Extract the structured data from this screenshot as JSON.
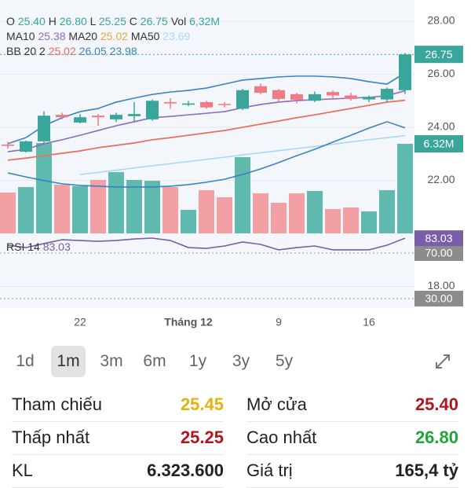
{
  "chart_data": {
    "type": "candlestick",
    "up_color": "#3aa59a",
    "down_color": "#f07b84",
    "volume_up_color": "#5fb9ae",
    "volume_down_color": "#f3a0a4",
    "categories": [
      null,
      null,
      null,
      null,
      "22",
      null,
      null,
      null,
      null,
      null,
      "Tháng 12",
      null,
      null,
      null,
      null,
      "9",
      null,
      null,
      null,
      null,
      "16",
      null,
      null
    ],
    "open": [
      23.35,
      23.08,
      23.47,
      24.47,
      24.18,
      24.44,
      24.3,
      24.42,
      24.3,
      24.95,
      24.85,
      24.95,
      24.88,
      24.7,
      25.55,
      25.4,
      25.25,
      25.0,
      25.33,
      25.2,
      25.05,
      25.05,
      25.4
    ],
    "high": [
      23.45,
      23.5,
      24.6,
      24.55,
      24.5,
      24.5,
      24.55,
      24.95,
      25.05,
      25.1,
      25.0,
      25.0,
      24.95,
      25.45,
      25.65,
      25.45,
      25.3,
      25.35,
      25.38,
      25.3,
      25.2,
      25.5,
      26.8
    ],
    "low": [
      23.2,
      23.05,
      23.4,
      24.3,
      24.15,
      24.06,
      24.2,
      24.2,
      24.25,
      24.7,
      24.8,
      24.7,
      24.75,
      24.65,
      25.25,
      24.95,
      24.9,
      24.95,
      25.1,
      25.0,
      24.95,
      24.95,
      25.25
    ],
    "close": [
      23.3,
      23.47,
      24.44,
      24.38,
      24.38,
      24.38,
      24.47,
      24.5,
      25.0,
      24.9,
      24.9,
      24.75,
      24.85,
      25.4,
      25.3,
      25.07,
      25.04,
      25.25,
      25.2,
      25.07,
      25.15,
      25.45,
      26.75
    ],
    "ylim": [
      17.4,
      28.5
    ],
    "yticks": [
      {
        "value": 18,
        "label": "18.00"
      },
      {
        "value": 22,
        "label": "22.00"
      },
      {
        "value": 24,
        "label": "24.00"
      },
      {
        "value": 26,
        "label": "26.00"
      },
      {
        "value": 28,
        "label": "28.00"
      }
    ],
    "volume": {
      "values": [
        2.88,
        3.27,
        6.38,
        3.44,
        3.33,
        3.77,
        4.32,
        3.77,
        3.71,
        3.27,
        1.66,
        3.05,
        2.55,
        5.38,
        2.83,
        2.16,
        2.83,
        2.99,
        1.72,
        1.83,
        1.55,
        3.05,
        6.32
      ],
      "value_labels": [
        null,
        null,
        null,
        null,
        null,
        null,
        null,
        null,
        null,
        null,
        null,
        null,
        null,
        null,
        null,
        null,
        null,
        null,
        null,
        null,
        null,
        null,
        "6.32M"
      ],
      "vlim": [
        0,
        10
      ]
    },
    "legend_ohlc": [
      {
        "key": "O",
        "value": "25.40"
      },
      {
        "key": "H",
        "value": "26.80"
      },
      {
        "key": "L",
        "value": "25.25"
      },
      {
        "key": "C",
        "value": "26.75"
      },
      {
        "key": "Vol",
        "value": "6,32M"
      }
    ],
    "lines": [
      {
        "name": "MA10",
        "color": "#8a6bbf",
        "legend_value": "25.38",
        "values": [
          23.08,
          23.17,
          23.38,
          23.53,
          23.7,
          23.88,
          24.06,
          24.21,
          24.36,
          24.41,
          24.47,
          24.53,
          24.59,
          24.74,
          24.86,
          24.95,
          25.01,
          25.04,
          25.07,
          25.1,
          25.13,
          25.19,
          25.38
        ]
      },
      {
        "name": "MA20",
        "color": "#f0a636",
        "legend_value": "25.02",
        "values": [
          22.76,
          22.84,
          22.93,
          23.02,
          23.11,
          23.23,
          23.32,
          23.41,
          23.53,
          23.61,
          23.7,
          23.79,
          23.88,
          24.0,
          24.12,
          24.24,
          24.36,
          24.47,
          24.59,
          24.71,
          24.83,
          24.95,
          25.02
        ]
      },
      {
        "name": "MA50",
        "color": "#a8d8f2",
        "legend_value": "23.69",
        "values": [
          null,
          null,
          null,
          null,
          22.22,
          22.3,
          22.38,
          22.47,
          22.55,
          22.63,
          22.71,
          22.79,
          22.87,
          22.96,
          23.04,
          23.12,
          23.2,
          23.28,
          23.36,
          23.45,
          23.53,
          23.61,
          23.69
        ]
      }
    ],
    "bb": {
      "name": "BB 20 2",
      "series": [
        {
          "color": "#ec6a5e",
          "legend_value": "25.02",
          "values": [
            22.76,
            22.84,
            22.93,
            23.02,
            23.11,
            23.23,
            23.32,
            23.41,
            23.53,
            23.61,
            23.7,
            23.79,
            23.88,
            24.0,
            24.12,
            24.24,
            24.36,
            24.47,
            24.59,
            24.71,
            24.83,
            24.95,
            25.02
          ]
        },
        {
          "color": "#3b82c4",
          "legend_value": "26.05",
          "values": [
            23.38,
            23.61,
            24.06,
            24.36,
            24.59,
            24.71,
            24.95,
            25.1,
            25.24,
            25.33,
            25.39,
            25.48,
            25.63,
            25.78,
            25.84,
            25.9,
            25.93,
            25.93,
            25.9,
            25.84,
            25.72,
            25.63,
            26.05
          ]
        },
        {
          "color": "#3b82c4",
          "legend_value": "23.98",
          "values": [
            22.28,
            22.13,
            21.99,
            21.87,
            21.81,
            21.78,
            21.75,
            21.75,
            21.75,
            21.78,
            21.84,
            21.93,
            22.04,
            22.22,
            22.43,
            22.67,
            22.93,
            23.17,
            23.44,
            23.7,
            23.97,
            24.21,
            23.98
          ]
        }
      ]
    },
    "rsi": {
      "name": "RSI 14",
      "color": "#7b5ea7",
      "legend_value": "83.03",
      "values": [
        76.9,
        74.8,
        78.3,
        81.7,
        81.0,
        80.3,
        81.0,
        82.4,
        83.1,
        81.0,
        74.8,
        74.1,
        76.2,
        79.7,
        77.6,
        72.8,
        74.8,
        76.2,
        72.8,
        72.8,
        72.8,
        76.9,
        83.03
      ],
      "ylim": [
        20,
        95
      ],
      "yticks": [
        {
          "value": 70,
          "label": "70.00"
        },
        {
          "value": 30,
          "label": "30.00"
        }
      ]
    }
  },
  "timeframes": {
    "options": [
      "1d",
      "1m",
      "3m",
      "6m",
      "1y",
      "3y",
      "5y"
    ],
    "selected": 1
  },
  "stats": [
    {
      "label": "Tham chiếu",
      "value": "25.45",
      "color": "#e3b20d"
    },
    {
      "label": "Mở cửa",
      "value": "25.40",
      "color": "#b3141e"
    },
    {
      "label": "Thấp nhất",
      "value": "25.25",
      "color": "#b3141e"
    },
    {
      "label": "Cao nhất",
      "value": "26.80",
      "color": "#1fa53a"
    },
    {
      "label": "KL",
      "value": "6.323.600",
      "color": "#222222"
    },
    {
      "label": "Giá trị",
      "value": "165,4 tỷ",
      "color": "#222222"
    }
  ]
}
